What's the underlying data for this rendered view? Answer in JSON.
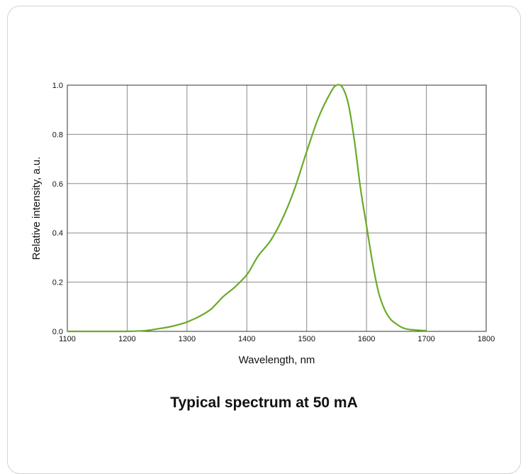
{
  "caption": "Typical spectrum at 50 mA",
  "chart_data": {
    "type": "line",
    "title": "",
    "xlabel": "Wavelength, nm",
    "ylabel": "Relative intensity, a.u.",
    "xlim": [
      1100,
      1800
    ],
    "ylim": [
      0,
      1.0
    ],
    "xticks": [
      1100,
      1200,
      1300,
      1400,
      1500,
      1600,
      1700,
      1800
    ],
    "yticks": [
      "0.0",
      "0.2",
      "0.4",
      "0.6",
      "0.8",
      "1.0"
    ],
    "grid": true,
    "line_color": "#6aab28",
    "series": [
      {
        "x": [
          1100,
          1150,
          1200,
          1230,
          1250,
          1270,
          1290,
          1300,
          1320,
          1340,
          1360,
          1380,
          1400,
          1410,
          1420,
          1440,
          1460,
          1480,
          1500,
          1520,
          1540,
          1550,
          1560,
          1570,
          1580,
          1590,
          1600,
          1610,
          1620,
          1630,
          1640,
          1650,
          1660,
          1670,
          1680,
          1690,
          1700
        ],
        "y": [
          0.0,
          0.0,
          0.0,
          0.003,
          0.01,
          0.018,
          0.03,
          0.038,
          0.06,
          0.09,
          0.14,
          0.18,
          0.23,
          0.27,
          0.31,
          0.37,
          0.46,
          0.58,
          0.73,
          0.87,
          0.97,
          1.0,
          0.99,
          0.92,
          0.77,
          0.58,
          0.43,
          0.28,
          0.16,
          0.09,
          0.05,
          0.03,
          0.015,
          0.008,
          0.006,
          0.004,
          0.003
        ]
      }
    ]
  }
}
